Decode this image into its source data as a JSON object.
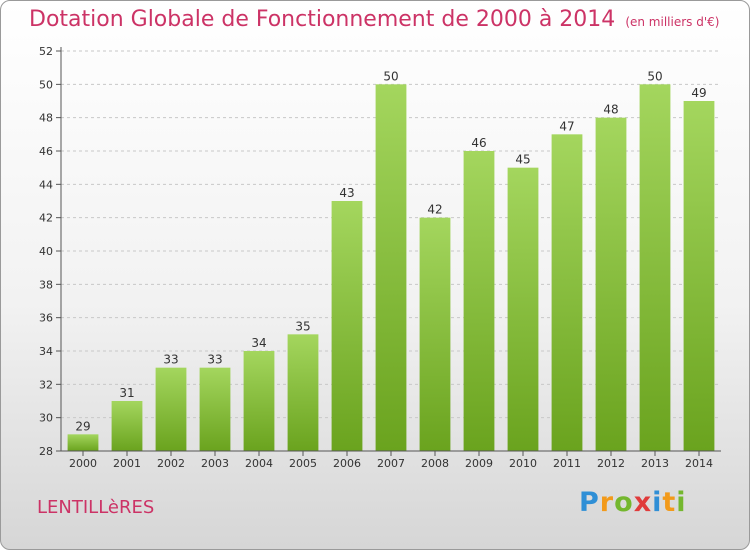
{
  "chart_data": {
    "type": "bar",
    "title": "Dotation Globale de Fonctionnement de 2000 à 2014",
    "subtitle": "(en milliers d'€)",
    "categories": [
      "2000",
      "2001",
      "2002",
      "2003",
      "2004",
      "2005",
      "2006",
      "2007",
      "2008",
      "2009",
      "2010",
      "2011",
      "2012",
      "2013",
      "2014"
    ],
    "values": [
      29,
      31,
      33,
      33,
      34,
      35,
      43,
      50,
      42,
      46,
      45,
      47,
      48,
      50,
      49
    ],
    "xlabel": "",
    "ylabel": "",
    "ylim": [
      28,
      52
    ],
    "yticks": [
      28,
      30,
      32,
      34,
      36,
      38,
      40,
      42,
      44,
      46,
      48,
      50,
      52
    ],
    "grid": true,
    "colors": {
      "bar_light": "#a4d65e",
      "bar_dark": "#6aa31e",
      "text": "#cc3366"
    }
  },
  "footer": {
    "commune": "LENTILLèRES",
    "logo": {
      "p": "P",
      "r": "r",
      "o": "o",
      "x": "x",
      "i1": "i",
      "t": "t",
      "i2": "i"
    }
  }
}
